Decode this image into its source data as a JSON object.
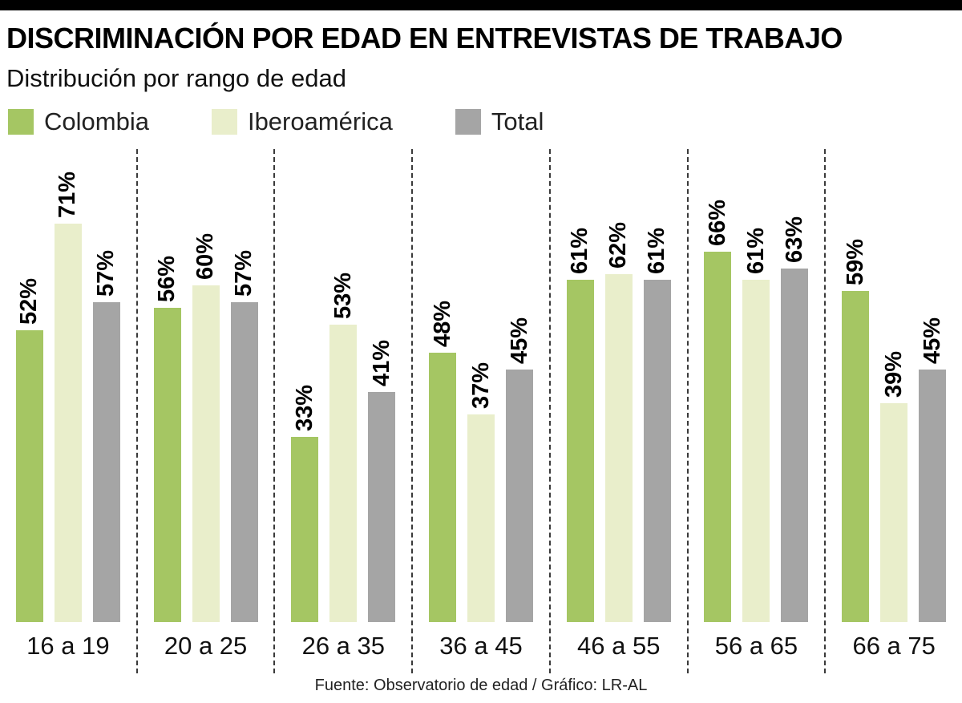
{
  "header": {
    "title": "DISCRIMINACIÓN POR EDAD EN ENTREVISTAS DE TRABAJO",
    "subtitle": "Distribución por rango de edad"
  },
  "legend": [
    {
      "label": "Colombia",
      "color": "#a5c663"
    },
    {
      "label": "Iberoamérica",
      "color": "#e9eecb"
    },
    {
      "label": "Total",
      "color": "#a5a5a5"
    }
  ],
  "chart_data": {
    "type": "bar",
    "title": "DISCRIMINACIÓN POR EDAD EN ENTREVISTAS DE TRABAJO",
    "subtitle": "Distribución por rango de edad",
    "categories": [
      "16 a 19",
      "20 a 25",
      "26 a 35",
      "36 a 45",
      "46 a 55",
      "56 a 65",
      "66 a 75"
    ],
    "series": [
      {
        "name": "Colombia",
        "color": "#a5c663",
        "values": [
          52,
          56,
          33,
          48,
          61,
          66,
          59
        ]
      },
      {
        "name": "Iberoamérica",
        "color": "#e9eecb",
        "values": [
          71,
          60,
          53,
          37,
          62,
          61,
          39
        ]
      },
      {
        "name": "Total",
        "color": "#a5a5a5",
        "values": [
          57,
          57,
          41,
          45,
          61,
          63,
          45
        ]
      }
    ],
    "value_suffix": "%",
    "xlabel": "",
    "ylabel": "",
    "ylim": [
      0,
      75
    ],
    "grid": false,
    "legend_position": "top",
    "group_separators": "dashed-vertical"
  },
  "footer": {
    "source": "Fuente: Observatorio de edad / Gráfico: LR-AL"
  }
}
